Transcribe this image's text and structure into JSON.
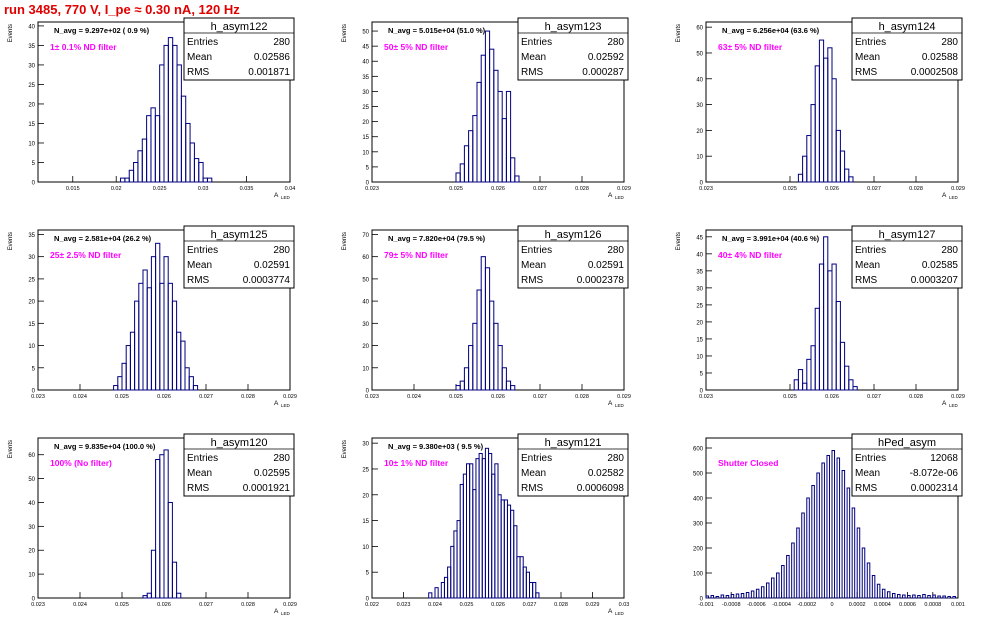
{
  "title": "run 3485,   770 V, I_pe ≈ 0.30 nA, 120 Hz",
  "colors": {
    "hist": "#00007f",
    "annot": "#ff00ff",
    "title": "#e00000"
  },
  "chart_data": [
    {
      "type": "bar",
      "name": "h_asym122",
      "entries": "280",
      "mean": "0.02586",
      "rms": "0.001871",
      "nlabel": "N_avg = 9.297e+02 ( 0.9 %)",
      "filter": "1± 0.1% ND filter",
      "xlabel": "A",
      "xlabel_sub": "LED",
      "ylabel": "Events",
      "xlim": [
        0.011,
        0.04
      ],
      "ylim": [
        0,
        41
      ],
      "xticks": [
        0.015,
        0.02,
        0.025,
        0.03,
        0.035,
        0.04
      ],
      "yticks": [
        0,
        5,
        10,
        15,
        20,
        25,
        30,
        35,
        40
      ],
      "bin_width": 0.0005,
      "bins": [
        [
          0.0205,
          1
        ],
        [
          0.021,
          1
        ],
        [
          0.0215,
          3
        ],
        [
          0.022,
          5
        ],
        [
          0.0225,
          8
        ],
        [
          0.023,
          11
        ],
        [
          0.0235,
          17
        ],
        [
          0.024,
          19
        ],
        [
          0.0245,
          17
        ],
        [
          0.025,
          30
        ],
        [
          0.0255,
          35
        ],
        [
          0.026,
          37
        ],
        [
          0.0265,
          35
        ],
        [
          0.027,
          30
        ],
        [
          0.0275,
          22
        ],
        [
          0.028,
          15
        ],
        [
          0.0285,
          10
        ],
        [
          0.029,
          6
        ],
        [
          0.0295,
          5
        ],
        [
          0.03,
          1
        ],
        [
          0.0305,
          1
        ]
      ]
    },
    {
      "type": "bar",
      "name": "h_asym123",
      "entries": "280",
      "mean": "0.02592",
      "rms": "0.000287",
      "nlabel": "N_avg = 5.015e+04 (51.0 %)",
      "filter": "50± 5% ND filter",
      "xlabel": "A",
      "xlabel_sub": "LED",
      "ylabel": "Events",
      "xlim": [
        0.023,
        0.029
      ],
      "ylim": [
        0,
        53
      ],
      "xticks": [
        0.023,
        0.025,
        0.026,
        0.027,
        0.028,
        0.029
      ],
      "yticks": [
        0,
        5,
        10,
        15,
        20,
        25,
        30,
        35,
        40,
        45,
        50
      ],
      "bin_width": 0.0001,
      "bins": [
        [
          0.025,
          3
        ],
        [
          0.0251,
          6
        ],
        [
          0.0252,
          12
        ],
        [
          0.0253,
          17
        ],
        [
          0.0254,
          22
        ],
        [
          0.0255,
          33
        ],
        [
          0.0256,
          42
        ],
        [
          0.0257,
          50
        ],
        [
          0.0258,
          44
        ],
        [
          0.0259,
          37
        ],
        [
          0.026,
          30
        ],
        [
          0.0261,
          21
        ],
        [
          0.0262,
          30
        ],
        [
          0.0263,
          8
        ],
        [
          0.0264,
          2
        ]
      ]
    },
    {
      "type": "bar",
      "name": "h_asym124",
      "entries": "280",
      "mean": "0.02588",
      "rms": "0.0002508",
      "nlabel": "N_avg = 6.256e+04 (63.6 %)",
      "filter": "63± 5% ND filter",
      "xlabel": "A",
      "xlabel_sub": "LED",
      "ylabel": "Events",
      "xlim": [
        0.023,
        0.029
      ],
      "ylim": [
        0,
        62
      ],
      "xticks": [
        0.023,
        0.025,
        0.026,
        0.027,
        0.028,
        0.029
      ],
      "yticks": [
        0,
        10,
        20,
        30,
        40,
        50,
        60
      ],
      "bin_width": 0.0001,
      "bins": [
        [
          0.0252,
          3
        ],
        [
          0.0253,
          10
        ],
        [
          0.0254,
          18
        ],
        [
          0.0255,
          30
        ],
        [
          0.0256,
          45
        ],
        [
          0.0257,
          55
        ],
        [
          0.0258,
          48
        ],
        [
          0.0259,
          52
        ],
        [
          0.026,
          40
        ],
        [
          0.0261,
          20
        ],
        [
          0.0262,
          12
        ],
        [
          0.0263,
          5
        ],
        [
          0.0264,
          2
        ]
      ]
    },
    {
      "type": "bar",
      "name": "h_asym125",
      "entries": "280",
      "mean": "0.02591",
      "rms": "0.0003774",
      "nlabel": "N_avg = 2.581e+04 (26.2 %)",
      "filter": "25± 2.5% ND filter",
      "xlabel": "A",
      "xlabel_sub": "LED",
      "ylabel": "Events",
      "xlim": [
        0.023,
        0.029
      ],
      "ylim": [
        0,
        36
      ],
      "xticks": [
        0.023,
        0.024,
        0.025,
        0.026,
        0.027,
        0.028,
        0.029
      ],
      "yticks": [
        0,
        5,
        10,
        15,
        20,
        25,
        30,
        35
      ],
      "bin_width": 0.0001,
      "bins": [
        [
          0.0248,
          1
        ],
        [
          0.0249,
          3
        ],
        [
          0.025,
          6
        ],
        [
          0.0251,
          10
        ],
        [
          0.0252,
          13
        ],
        [
          0.0253,
          20
        ],
        [
          0.0254,
          24
        ],
        [
          0.0255,
          27
        ],
        [
          0.0256,
          23
        ],
        [
          0.0257,
          30
        ],
        [
          0.0258,
          33
        ],
        [
          0.0259,
          24
        ],
        [
          0.026,
          30
        ],
        [
          0.0261,
          24
        ],
        [
          0.0262,
          20
        ],
        [
          0.0263,
          13
        ],
        [
          0.0264,
          11
        ],
        [
          0.0265,
          5
        ],
        [
          0.0266,
          3
        ],
        [
          0.0267,
          1
        ]
      ]
    },
    {
      "type": "bar",
      "name": "h_asym126",
      "entries": "280",
      "mean": "0.02591",
      "rms": "0.0002378",
      "nlabel": "N_avg = 7.820e+04 (79.5 %)",
      "filter": "79± 5% ND filter",
      "xlabel": "A",
      "xlabel_sub": "LED",
      "ylabel": "Events",
      "xlim": [
        0.023,
        0.029
      ],
      "ylim": [
        0,
        72
      ],
      "xticks": [
        0.023,
        0.024,
        0.025,
        0.026,
        0.027,
        0.028,
        0.029
      ],
      "yticks": [
        0,
        10,
        20,
        30,
        40,
        50,
        60,
        70
      ],
      "bin_width": 0.0001,
      "bins": [
        [
          0.025,
          2
        ],
        [
          0.0251,
          4
        ],
        [
          0.0252,
          10
        ],
        [
          0.0253,
          20
        ],
        [
          0.0254,
          30
        ],
        [
          0.0255,
          45
        ],
        [
          0.0256,
          60
        ],
        [
          0.0257,
          55
        ],
        [
          0.0258,
          40
        ],
        [
          0.0259,
          30
        ],
        [
          0.026,
          20
        ],
        [
          0.0261,
          10
        ],
        [
          0.0262,
          4
        ],
        [
          0.0263,
          2
        ]
      ]
    },
    {
      "type": "bar",
      "name": "h_asym127",
      "entries": "280",
      "mean": "0.02585",
      "rms": "0.0003207",
      "nlabel": "N_avg = 3.991e+04 (40.6 %)",
      "filter": "40± 4% ND filter",
      "xlabel": "A",
      "xlabel_sub": "LED",
      "ylabel": "Events",
      "xlim": [
        0.023,
        0.029
      ],
      "ylim": [
        0,
        47
      ],
      "xticks": [
        0.023,
        0.025,
        0.026,
        0.027,
        0.028,
        0.029
      ],
      "yticks": [
        0,
        5,
        10,
        15,
        20,
        25,
        30,
        35,
        40,
        45
      ],
      "bin_width": 0.0001,
      "bins": [
        [
          0.0251,
          3
        ],
        [
          0.0252,
          6
        ],
        [
          0.0253,
          2
        ],
        [
          0.0254,
          9
        ],
        [
          0.0255,
          13
        ],
        [
          0.0256,
          24
        ],
        [
          0.0257,
          37
        ],
        [
          0.0258,
          45
        ],
        [
          0.0259,
          35
        ],
        [
          0.026,
          37
        ],
        [
          0.0261,
          26
        ],
        [
          0.0262,
          14
        ],
        [
          0.0263,
          7
        ],
        [
          0.0264,
          3
        ],
        [
          0.0265,
          1
        ]
      ]
    },
    {
      "type": "bar",
      "name": "h_asym120",
      "entries": "280",
      "mean": "0.02595",
      "rms": "0.0001921",
      "nlabel": "N_avg = 9.835e+04 (100.0 %)",
      "filter": "100% (No filter)",
      "xlabel": "A",
      "xlabel_sub": "LED",
      "ylabel": "Events",
      "xlim": [
        0.023,
        0.029
      ],
      "ylim": [
        0,
        67
      ],
      "xticks": [
        0.023,
        0.024,
        0.025,
        0.026,
        0.027,
        0.028,
        0.029
      ],
      "yticks": [
        0,
        10,
        20,
        30,
        40,
        50,
        60
      ],
      "bin_width": 0.0001,
      "bins": [
        [
          0.0255,
          1
        ],
        [
          0.0256,
          2
        ],
        [
          0.0257,
          20
        ],
        [
          0.0258,
          58
        ],
        [
          0.0259,
          60
        ],
        [
          0.026,
          62
        ],
        [
          0.0261,
          40
        ],
        [
          0.0262,
          15
        ],
        [
          0.0263,
          2
        ]
      ]
    },
    {
      "type": "bar",
      "name": "h_asym121",
      "entries": "280",
      "mean": "0.02582",
      "rms": "0.0006098",
      "nlabel": "N_avg = 9.380e+03 ( 9.5 %)",
      "filter": "10± 1% ND filter",
      "xlabel": "A",
      "xlabel_sub": "LED",
      "ylabel": "Events",
      "xlim": [
        0.022,
        0.03
      ],
      "ylim": [
        0,
        31
      ],
      "xticks": [
        0.022,
        0.023,
        0.024,
        0.025,
        0.026,
        0.027,
        0.028,
        0.029,
        0.03
      ],
      "yticks": [
        0,
        5,
        10,
        15,
        20,
        25,
        30
      ],
      "bin_width": 0.0001,
      "bins": [
        [
          0.0238,
          1
        ],
        [
          0.024,
          2
        ],
        [
          0.0242,
          3
        ],
        [
          0.0243,
          4
        ],
        [
          0.0244,
          6
        ],
        [
          0.0245,
          10
        ],
        [
          0.0246,
          13
        ],
        [
          0.0247,
          15
        ],
        [
          0.0248,
          22
        ],
        [
          0.0249,
          24
        ],
        [
          0.025,
          26
        ],
        [
          0.0251,
          26
        ],
        [
          0.0252,
          21
        ],
        [
          0.0253,
          27
        ],
        [
          0.0254,
          28
        ],
        [
          0.0255,
          27
        ],
        [
          0.0256,
          29
        ],
        [
          0.0257,
          28
        ],
        [
          0.0258,
          24
        ],
        [
          0.0259,
          26
        ],
        [
          0.026,
          20
        ],
        [
          0.0261,
          19
        ],
        [
          0.0262,
          19
        ],
        [
          0.0263,
          18
        ],
        [
          0.0264,
          17
        ],
        [
          0.0265,
          14
        ],
        [
          0.0266,
          8
        ],
        [
          0.0267,
          8
        ],
        [
          0.0268,
          6
        ],
        [
          0.0269,
          5
        ],
        [
          0.027,
          3
        ],
        [
          0.0271,
          3
        ],
        [
          0.0272,
          1
        ]
      ]
    },
    {
      "type": "bar",
      "name": "hPed_asym",
      "entries": "12068",
      "mean": "-8.072e-06",
      "rms": "0.0002314",
      "nlabel": "",
      "filter": "Shutter Closed",
      "xlabel": "",
      "xlabel_sub": "",
      "ylabel": "",
      "xlim": [
        -0.001,
        0.001
      ],
      "ylim": [
        0,
        640
      ],
      "xticks": [
        -0.001,
        -0.0008,
        -0.0006,
        -0.0004,
        -0.0002,
        0,
        0.0002,
        0.0004,
        0.0006,
        0.0008,
        0.001
      ],
      "yticks": [
        0,
        100,
        200,
        300,
        400,
        500,
        600
      ],
      "bin_width": 2e-05,
      "bins": [
        [
          -0.001,
          8
        ],
        [
          -0.00096,
          10
        ],
        [
          -0.00092,
          6
        ],
        [
          -0.00088,
          12
        ],
        [
          -0.00084,
          10
        ],
        [
          -0.0008,
          14
        ],
        [
          -0.00076,
          16
        ],
        [
          -0.00072,
          18
        ],
        [
          -0.00068,
          22
        ],
        [
          -0.00064,
          28
        ],
        [
          -0.0006,
          35
        ],
        [
          -0.00056,
          45
        ],
        [
          -0.00052,
          60
        ],
        [
          -0.00048,
          80
        ],
        [
          -0.00044,
          100
        ],
        [
          -0.0004,
          130
        ],
        [
          -0.00036,
          170
        ],
        [
          -0.00032,
          220
        ],
        [
          -0.00028,
          280
        ],
        [
          -0.00024,
          340
        ],
        [
          -0.0002,
          400
        ],
        [
          -0.00016,
          450
        ],
        [
          -0.00012,
          500
        ],
        [
          -8e-05,
          540
        ],
        [
          -4e-05,
          570
        ],
        [
          0,
          590
        ],
        [
          4e-05,
          560
        ],
        [
          8e-05,
          510
        ],
        [
          0.00012,
          440
        ],
        [
          0.00016,
          360
        ],
        [
          0.0002,
          280
        ],
        [
          0.00024,
          200
        ],
        [
          0.00028,
          140
        ],
        [
          0.00032,
          90
        ],
        [
          0.00036,
          55
        ],
        [
          0.0004,
          35
        ],
        [
          0.00044,
          25
        ],
        [
          0.00048,
          18
        ],
        [
          0.00052,
          14
        ],
        [
          0.00056,
          12
        ],
        [
          0.0006,
          10
        ],
        [
          0.00064,
          12
        ],
        [
          0.00068,
          10
        ],
        [
          0.00072,
          14
        ],
        [
          0.00076,
          10
        ],
        [
          0.0008,
          12
        ],
        [
          0.00084,
          8
        ],
        [
          0.00088,
          8
        ],
        [
          0.00092,
          6
        ],
        [
          0.00096,
          6
        ]
      ]
    }
  ]
}
